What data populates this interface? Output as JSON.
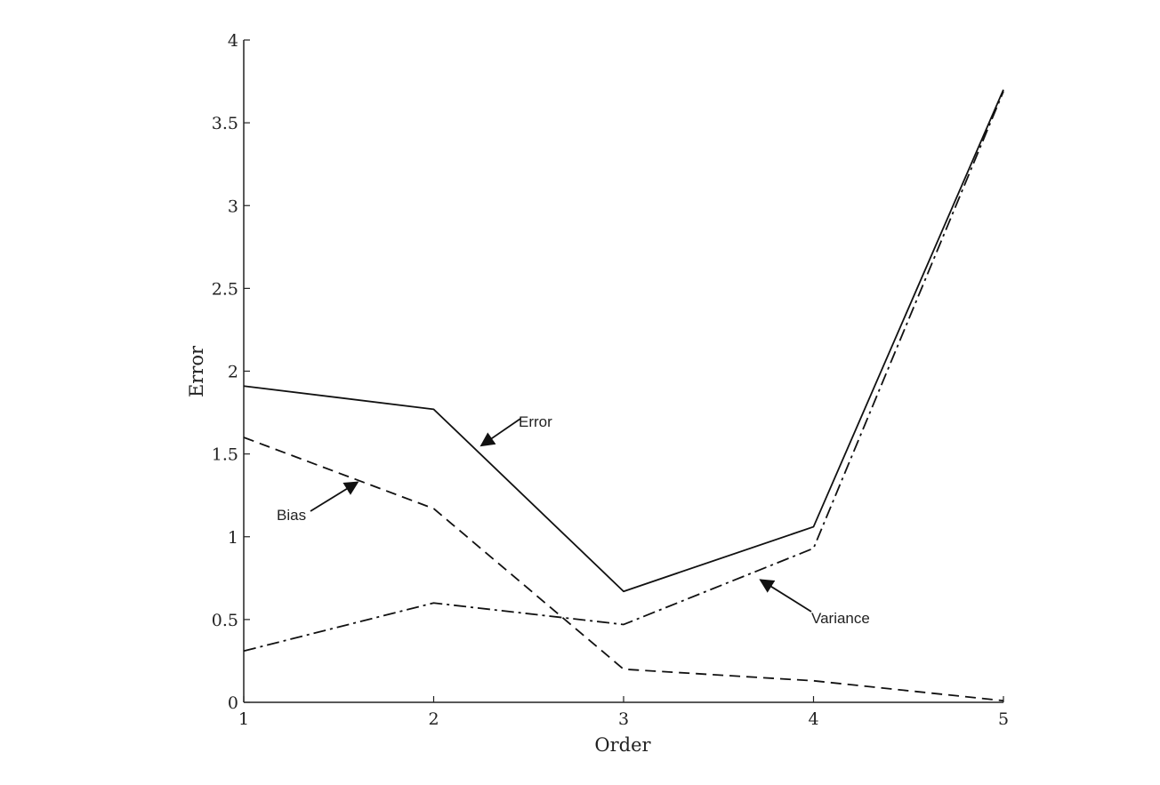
{
  "chart_data": {
    "type": "line",
    "title": "",
    "xlabel": "Order",
    "ylabel": "Error",
    "x": [
      1,
      2,
      3,
      4,
      5
    ],
    "xlim": [
      1,
      5
    ],
    "ylim": [
      0,
      4
    ],
    "xticks": [
      "1",
      "2",
      "3",
      "4",
      "5"
    ],
    "yticks": [
      "0",
      "0.5",
      "1",
      "1.5",
      "2",
      "2.5",
      "3",
      "3.5",
      "4"
    ],
    "grid": false,
    "legend": "none",
    "series": [
      {
        "name": "Error",
        "style": "solid",
        "values": [
          1.91,
          1.77,
          0.67,
          1.06,
          3.7
        ]
      },
      {
        "name": "Bias",
        "style": "dashed",
        "values": [
          1.6,
          1.17,
          0.2,
          0.13,
          0.01
        ]
      },
      {
        "name": "Variance",
        "style": "dashdot",
        "values": [
          0.31,
          0.6,
          0.47,
          0.93,
          3.69
        ]
      }
    ],
    "annotations": [
      {
        "text": "Error",
        "arrow_to": {
          "x": 2.25,
          "y": 1.55
        }
      },
      {
        "text": "Bias",
        "arrow_to": {
          "x": 1.6,
          "y": 1.33
        }
      },
      {
        "text": "Variance",
        "arrow_to": {
          "x": 3.72,
          "y": 0.74
        }
      }
    ],
    "colors": {
      "line": "#111111",
      "axis": "#222222"
    }
  }
}
